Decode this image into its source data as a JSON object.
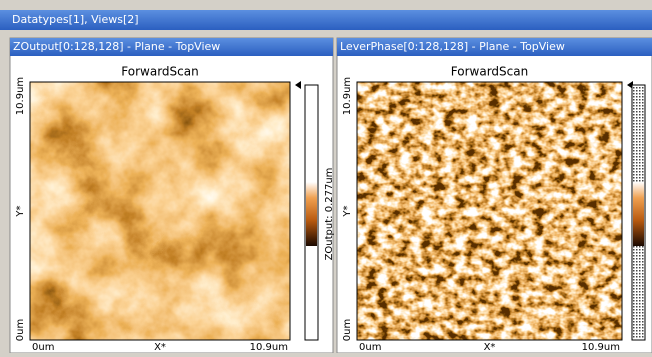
{
  "header": {
    "title": "Datatypes[1], Views[2]"
  },
  "panels": [
    {
      "title": "ZOutput[0:128,128] - Plane - TopView",
      "scan_label": "ForwardScan",
      "y_axis": {
        "top": "10.9um",
        "label": "Y*",
        "bottom": "0um"
      },
      "x_axis": {
        "left": "0um",
        "label": "X*",
        "right": "10.9um"
      },
      "colorbar_label": "ZOutput: 0.277um"
    },
    {
      "title": "LeverPhase[0:128,128] - Plane - TopView",
      "scan_label": "ForwardScan",
      "y_axis": {
        "top": "10.9um",
        "label": "Y*",
        "bottom": "0um"
      },
      "x_axis": {
        "left": "0um",
        "label": "X*",
        "right": "10.9um"
      }
    }
  ]
}
